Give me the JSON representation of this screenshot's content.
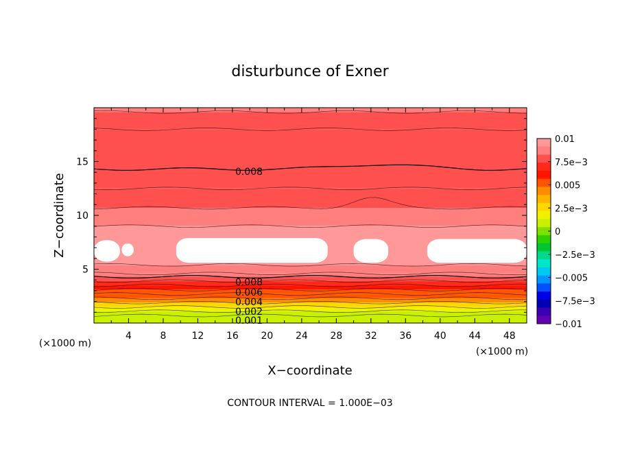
{
  "chart_data": {
    "type": "contour",
    "title": "disturbunce of Exner",
    "xlabel": "X−coordinate",
    "ylabel": "Z−coordinate",
    "x_unit": "(×1000 m)",
    "x_unit_right": "(×1000 m)",
    "footer": "CONTOUR INTERVAL = 1.000E−03",
    "xlim": [
      0,
      50
    ],
    "ylim": [
      0,
      20
    ],
    "x_ticks": [
      "4",
      "8",
      "12",
      "16",
      "20",
      "24",
      "28",
      "32",
      "36",
      "40",
      "44",
      "48"
    ],
    "y_ticks": [
      "5",
      "10",
      "15"
    ],
    "colorbar": {
      "range": [
        -0.01,
        0.01
      ],
      "tick_labels": [
        "0.01",
        "7.5e−3",
        "0.005",
        "2.5e−3",
        "0",
        "−2.5e−3",
        "−0.005",
        "−7.5e−3",
        "−0.01"
      ],
      "colors": [
        "#ff9999",
        "#ff7f7f",
        "#ff5050",
        "#ff2a1a",
        "#ff1500",
        "#ff5500",
        "#ff8c00",
        "#ffb400",
        "#ffd700",
        "#f0f000",
        "#c8f000",
        "#80e000",
        "#30d000",
        "#00c832",
        "#00d98a",
        "#00e6c8",
        "#00c8f0",
        "#0096ff",
        "#0050ff",
        "#0000e6",
        "#0000b4",
        "#3c00b4",
        "#6400b4"
      ]
    },
    "contour_labels": [
      "0.008",
      "0.008",
      "0.006",
      "0.004",
      "0.002",
      "0.001"
    ],
    "contour_interval": 0.001,
    "bands": [
      {
        "z_top": 20.0,
        "value": 0.0085
      },
      {
        "z_top": 19.6,
        "value": 0.0082
      },
      {
        "z_top": 18.0,
        "value": 0.008
      },
      {
        "z_top": 14.3,
        "value": 0.0078
      },
      {
        "z_top": 12.5,
        "value": 0.0075
      },
      {
        "z_top": 10.7,
        "value": 0.009
      },
      {
        "z_top": 9.0,
        "value": 0.0095
      },
      {
        "z_top": 5.4,
        "value": 0.009
      },
      {
        "z_top": 4.6,
        "value": 0.0085
      },
      {
        "z_top": 4.3,
        "value": 0.008
      },
      {
        "z_top": 3.9,
        "value": 0.007
      },
      {
        "z_top": 3.5,
        "value": 0.006
      },
      {
        "z_top": 3.1,
        "value": 0.0055
      },
      {
        "z_top": 2.7,
        "value": 0.005
      },
      {
        "z_top": 2.3,
        "value": 0.004
      },
      {
        "z_top": 1.9,
        "value": 0.003
      },
      {
        "z_top": 1.5,
        "value": 0.002
      },
      {
        "z_top": 1.1,
        "value": 0.0012
      },
      {
        "z_top": 0.7,
        "value": 0.0005
      }
    ],
    "white_regions": [
      {
        "x_range": [
          0,
          3
        ],
        "z_range": [
          5.7,
          7.7
        ]
      },
      {
        "x_range": [
          3.2,
          4.6
        ],
        "z_range": [
          6.2,
          7.4
        ]
      },
      {
        "x_range": [
          9.5,
          27
        ],
        "z_range": [
          5.6,
          7.9
        ]
      },
      {
        "x_range": [
          30,
          34
        ],
        "z_range": [
          5.6,
          7.8
        ]
      },
      {
        "x_range": [
          38.5,
          50
        ],
        "z_range": [
          5.6,
          7.8
        ]
      }
    ]
  }
}
